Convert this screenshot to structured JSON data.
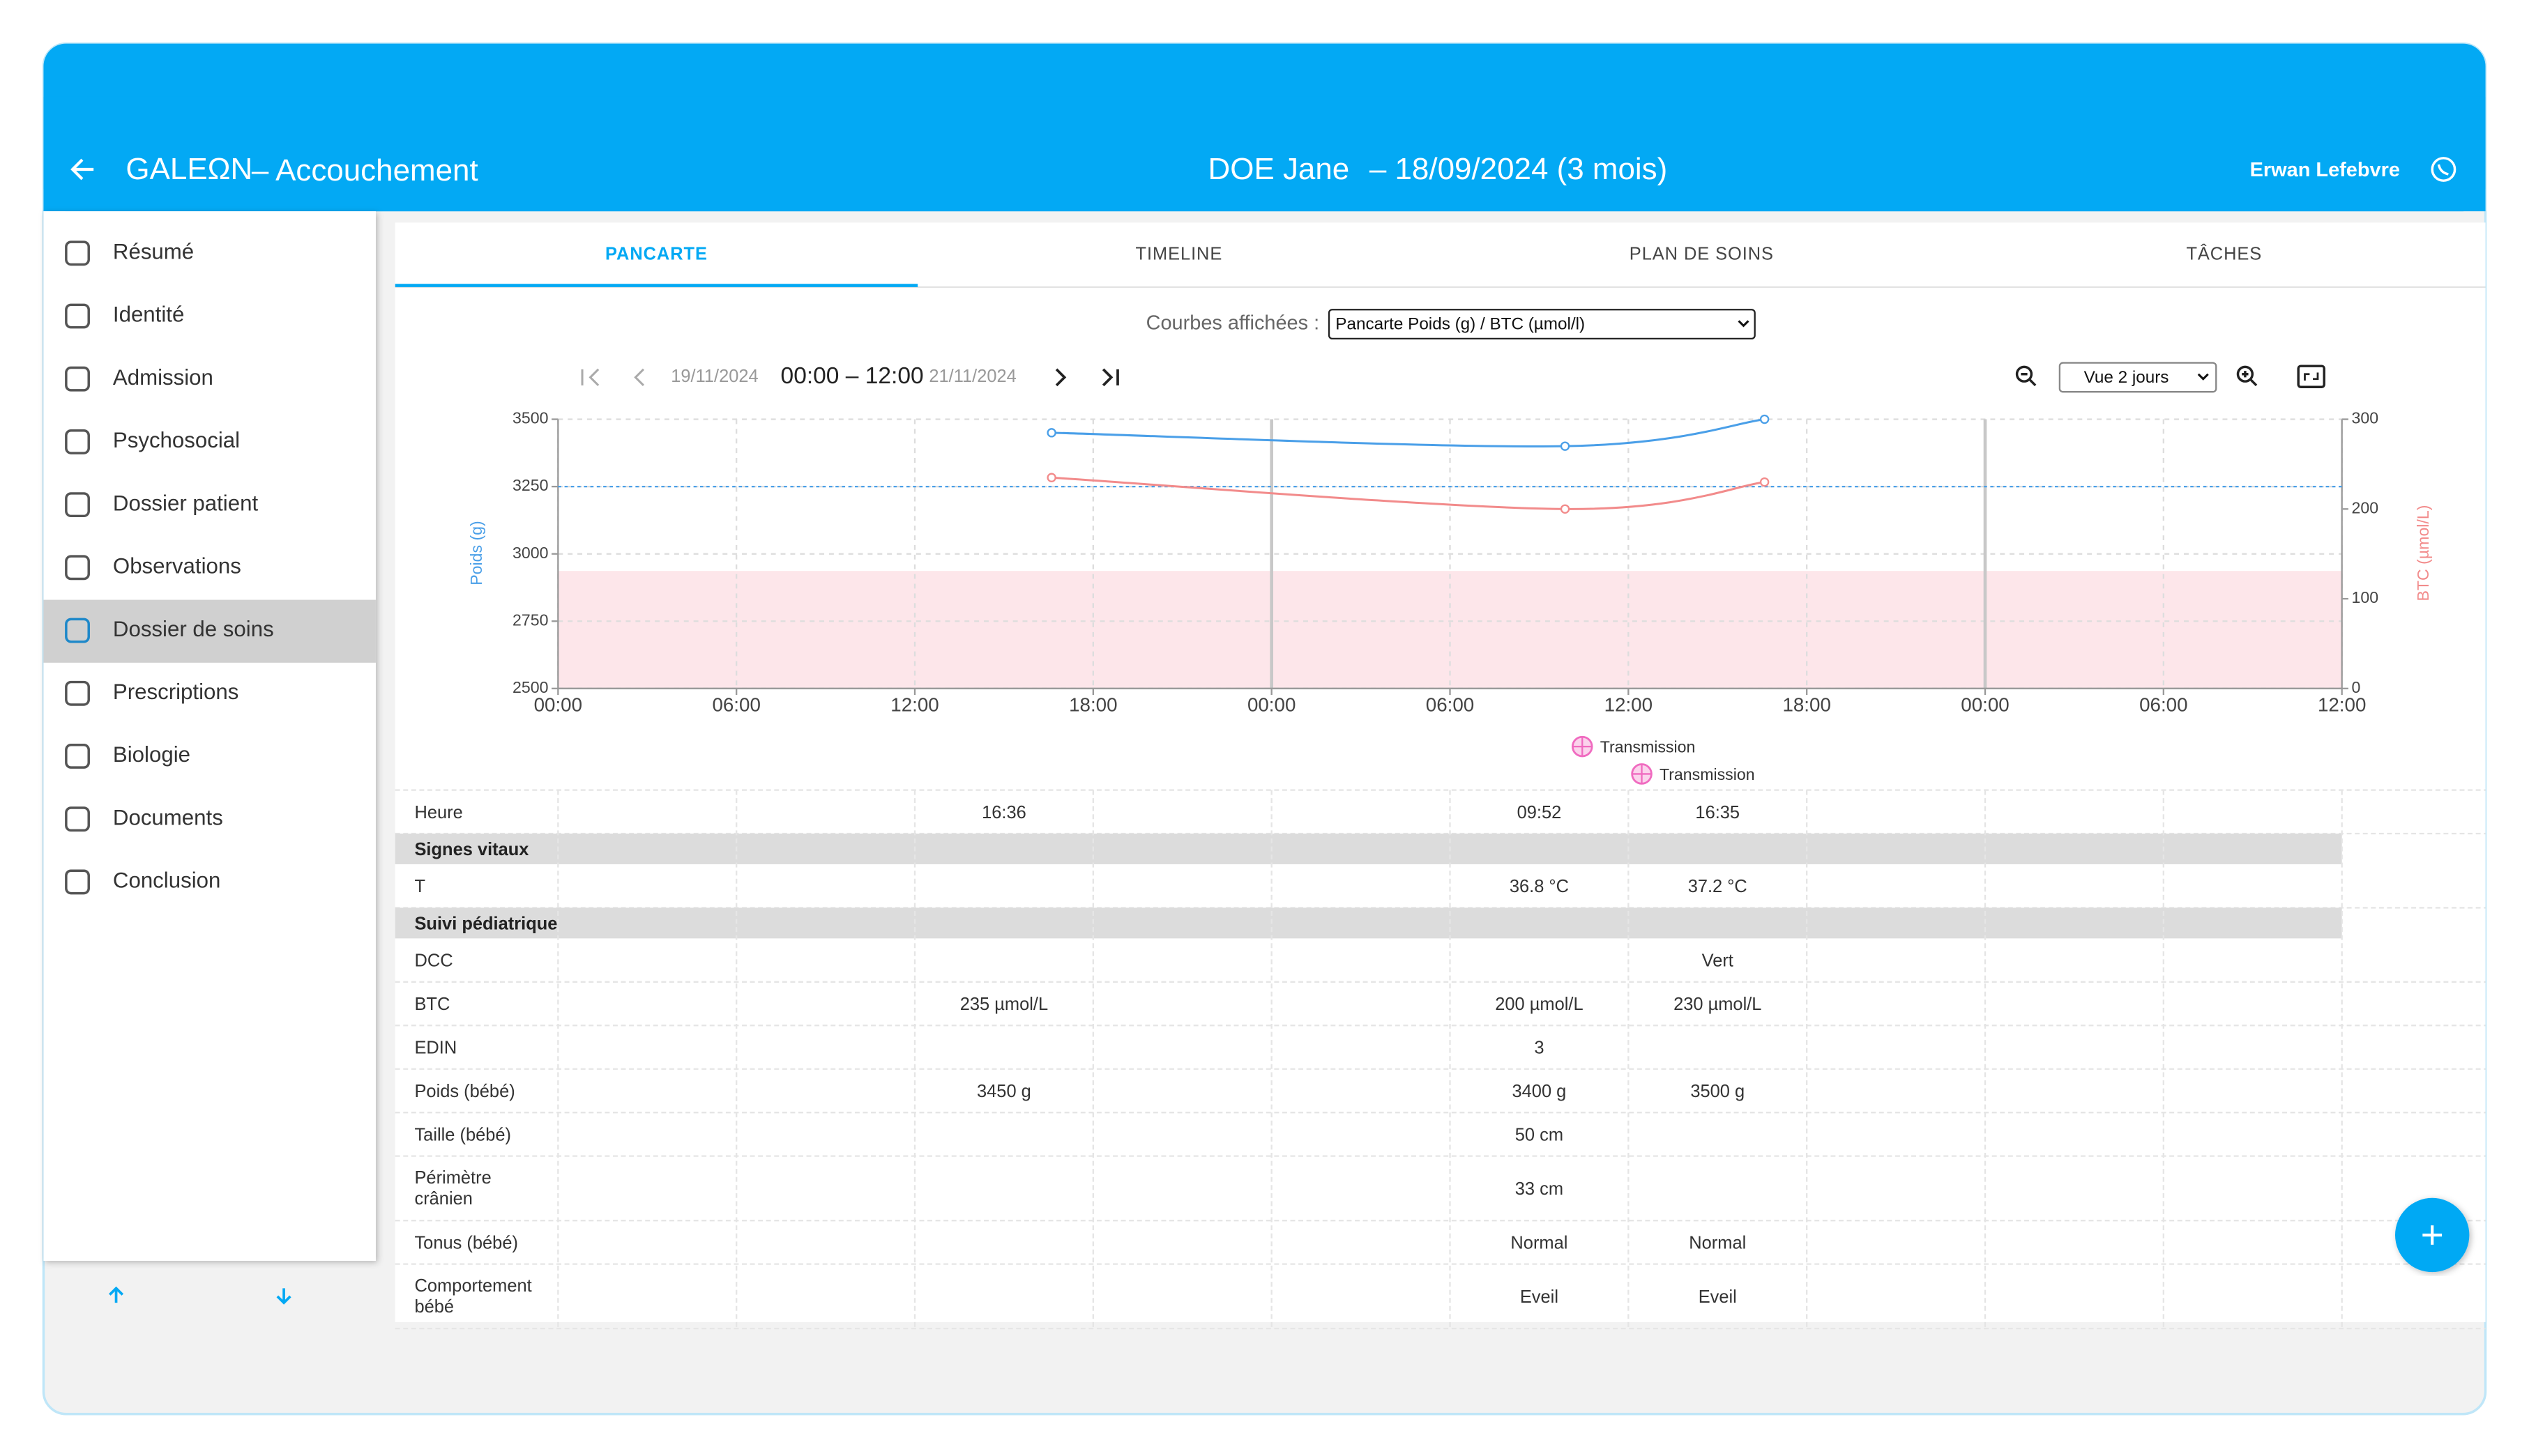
{
  "header": {
    "app_name": "GALEΩN",
    "module": "– Accouchement",
    "patient": "DOE Jane",
    "patient_info": "– 18/09/2024 (3 mois)",
    "user": "Erwan Lefebvre"
  },
  "sidebar": {
    "items": [
      "Résumé",
      "Identité",
      "Admission",
      "Psychosocial",
      "Dossier patient",
      "Observations",
      "Dossier de soins",
      "Prescriptions",
      "Biologie",
      "Documents",
      "Conclusion"
    ],
    "selected": 6
  },
  "tabs": {
    "items": [
      "PANCARTE",
      "TIMELINE",
      "PLAN DE SOINS",
      "TÂCHES"
    ],
    "active": 0
  },
  "controls": {
    "curves_label": "Courbes affichées :",
    "curves_select": "Pancarte Poids (g) / BTC (µmol/l)",
    "range_start_date": "19/11/2024",
    "range_time": "00:00 – 12:00",
    "range_end_date": "21/11/2024",
    "view_select": "Vue 2 jours"
  },
  "chart_data": {
    "type": "line",
    "x": [
      16.6,
      33.87,
      40.58
    ],
    "xlim": [
      0,
      60
    ],
    "xticks": [
      {
        "value": 0,
        "label": "00:00"
      },
      {
        "value": 6,
        "label": "06:00"
      },
      {
        "value": 12,
        "label": "12:00"
      },
      {
        "value": 18,
        "label": "18:00"
      },
      {
        "value": 24,
        "label": "00:00"
      },
      {
        "value": 30,
        "label": "06:00"
      },
      {
        "value": 36,
        "label": "12:00"
      },
      {
        "value": 42,
        "label": "18:00"
      },
      {
        "value": 48,
        "label": "00:00"
      },
      {
        "value": 54,
        "label": "06:00"
      },
      {
        "value": 60,
        "label": "12:00"
      }
    ],
    "ylim": [
      2500,
      3500
    ],
    "yticks": [
      2500,
      2750,
      3000,
      3250,
      3500
    ],
    "y2lim": [
      0,
      300
    ],
    "y2ticks": [
      0,
      100,
      200,
      300
    ],
    "ylabel": "Poids (g)",
    "y2label": "BTC (µmol/L)",
    "grid": true,
    "series": [
      {
        "color": "#4a9fe8",
        "values": [
          3450,
          3400,
          3500
        ]
      },
      {
        "color": "#f28b8b",
        "axis": "y2",
        "values": [
          235,
          200,
          230
        ]
      }
    ],
    "reference_line": {
      "axis": "y",
      "value": 3250,
      "color": "#4a9fe8"
    },
    "shaded_band": {
      "axis": "y2",
      "range": [
        0,
        131
      ],
      "color": "#fde6ea"
    },
    "events": {
      "x": [
        34.45,
        36.45
      ],
      "labels": [
        "Transmission",
        "Transmission"
      ],
      "color": "#f06bc0"
    }
  },
  "table": {
    "rows": [
      {
        "label": "Heure",
        "cells": [
          null,
          null,
          "16:36",
          null,
          null,
          "09:52",
          "16:35",
          null,
          null,
          null
        ]
      },
      {
        "section": "Signes vitaux"
      },
      {
        "label": "T",
        "cells": [
          null,
          null,
          null,
          null,
          null,
          "36.8 °C",
          "37.2 °C",
          null,
          null,
          null
        ]
      },
      {
        "section": "Suivi pédiatrique"
      },
      {
        "label": "DCC",
        "cells": [
          null,
          null,
          null,
          null,
          null,
          null,
          "Vert",
          null,
          null,
          null
        ]
      },
      {
        "label": "BTC",
        "cells": [
          null,
          null,
          "235 µmol/L",
          null,
          null,
          "200 µmol/L",
          "230 µmol/L",
          null,
          null,
          null
        ]
      },
      {
        "label": "EDIN",
        "cells": [
          null,
          null,
          null,
          null,
          null,
          "3",
          null,
          null,
          null,
          null
        ]
      },
      {
        "label": "Poids (bébé)",
        "cells": [
          null,
          null,
          "3450 g",
          null,
          null,
          "3400 g",
          "3500 g",
          null,
          null,
          null
        ]
      },
      {
        "label": "Taille (bébé)",
        "cells": [
          null,
          null,
          null,
          null,
          null,
          "50 cm",
          null,
          null,
          null,
          null
        ]
      },
      {
        "label": "Périmètre crânien",
        "cells": [
          null,
          null,
          null,
          null,
          null,
          "33 cm",
          null,
          null,
          null,
          null
        ]
      },
      {
        "label": "Tonus (bébé)",
        "cells": [
          null,
          null,
          null,
          null,
          null,
          "Normal",
          "Normal",
          null,
          null,
          null
        ]
      },
      {
        "label": "Comportement bébé",
        "cells": [
          null,
          null,
          null,
          null,
          null,
          "Eveil",
          "Eveil",
          null,
          null,
          null
        ]
      }
    ]
  }
}
